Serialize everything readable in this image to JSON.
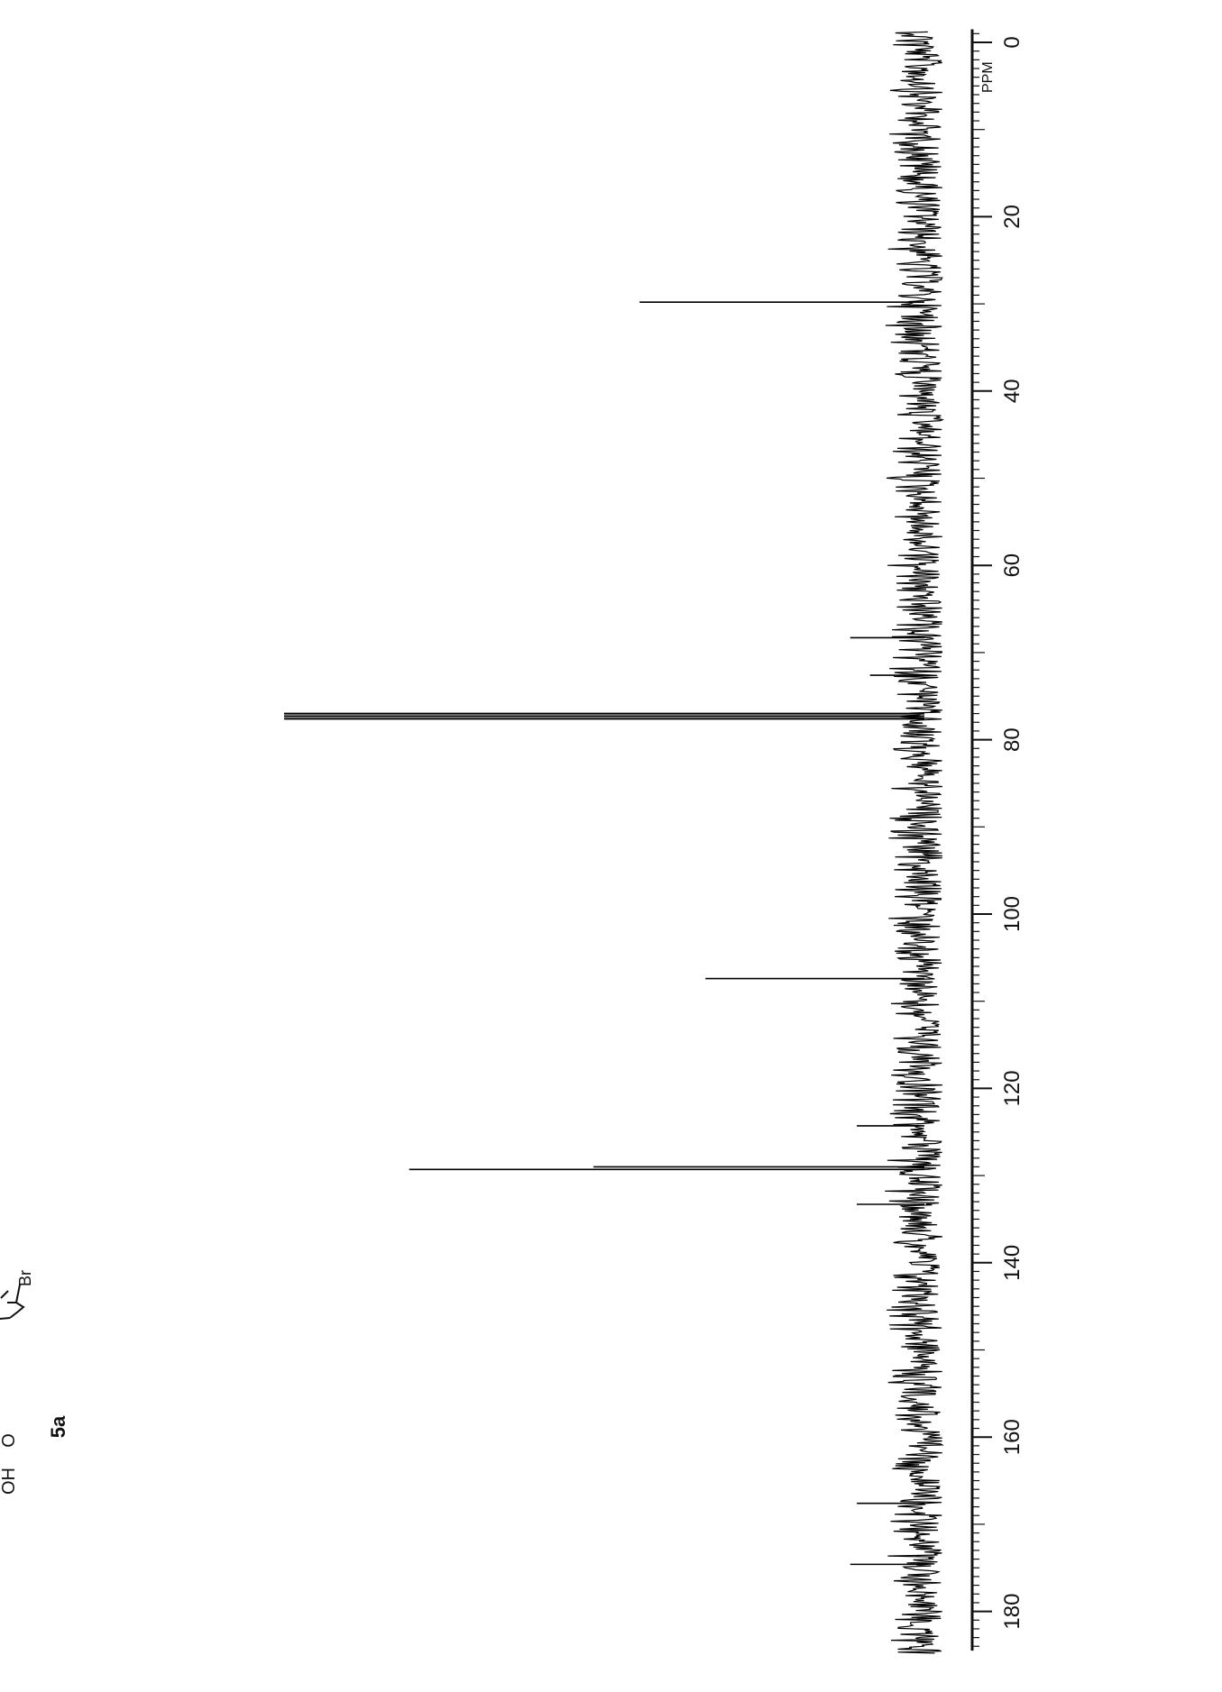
{
  "chart_data": {
    "type": "line",
    "title": "",
    "xlabel": "PPM",
    "ylabel": "",
    "x_axis_reversed": false,
    "orientation": "rotated-90-clockwise",
    "xlim": [
      -2,
      186
    ],
    "ticks": [
      0,
      20,
      40,
      60,
      80,
      100,
      120,
      140,
      160,
      180
    ],
    "tick_labels": [
      "0",
      "20",
      "40",
      "60",
      "80",
      "100",
      "120",
      "140",
      "160",
      "180"
    ],
    "grid": false,
    "legend": "none",
    "peaks": [
      {
        "ppm": 29.8,
        "intensity": 0.46
      },
      {
        "ppm": 68.3,
        "intensity": 0.14
      },
      {
        "ppm": 72.6,
        "intensity": 0.11
      },
      {
        "ppm": 77.0,
        "intensity": 1.0
      },
      {
        "ppm": 77.3,
        "intensity": 1.0
      },
      {
        "ppm": 77.6,
        "intensity": 1.0
      },
      {
        "ppm": 107.4,
        "intensity": 0.36
      },
      {
        "ppm": 124.3,
        "intensity": 0.13
      },
      {
        "ppm": 129.0,
        "intensity": 0.53
      },
      {
        "ppm": 129.3,
        "intensity": 0.81
      },
      {
        "ppm": 133.3,
        "intensity": 0.13
      },
      {
        "ppm": 167.6,
        "intensity": 0.13
      },
      {
        "ppm": 174.6,
        "intensity": 0.14
      }
    ],
    "noise_level": 0.09,
    "line_color": "#000000",
    "background": "#ffffff"
  },
  "structure": {
    "compound_label": "5a",
    "atom_labels": [
      "OH",
      "O",
      "Br"
    ]
  }
}
